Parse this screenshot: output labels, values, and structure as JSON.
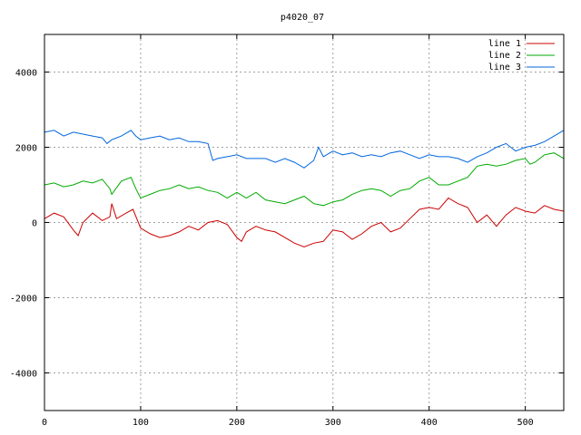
{
  "chart_data": {
    "type": "line",
    "title": "p4020_07",
    "xlabel": "",
    "ylabel": "",
    "xlim": [
      0,
      540
    ],
    "ylim": [
      -5000,
      5000
    ],
    "x_ticks": [
      0,
      100,
      200,
      300,
      400,
      500
    ],
    "y_ticks": [
      -4000,
      -2000,
      0,
      2000,
      4000
    ],
    "x_tick_labels": [
      "0",
      "100",
      "200",
      "300",
      "400",
      "500"
    ],
    "y_tick_labels": [
      "-4000",
      "-2000",
      "0",
      "2000",
      "4000"
    ],
    "grid": true,
    "legend_position": "top-right",
    "series": [
      {
        "name": "line 1",
        "color": "#cc0000",
        "x": [
          0,
          10,
          20,
          30,
          35,
          40,
          50,
          60,
          68,
          70,
          75,
          85,
          92,
          100,
          110,
          120,
          130,
          140,
          150,
          160,
          170,
          180,
          190,
          200,
          205,
          210,
          220,
          230,
          240,
          250,
          260,
          270,
          280,
          290,
          300,
          310,
          320,
          330,
          340,
          350,
          360,
          370,
          380,
          390,
          400,
          410,
          420,
          430,
          440,
          450,
          460,
          470,
          480,
          490,
          500,
          510,
          520,
          530,
          540
        ],
        "y": [
          100,
          250,
          150,
          -200,
          -350,
          0,
          250,
          50,
          150,
          500,
          100,
          250,
          350,
          -150,
          -300,
          -400,
          -350,
          -250,
          -100,
          -200,
          0,
          50,
          -50,
          -400,
          -500,
          -250,
          -100,
          -200,
          -250,
          -400,
          -550,
          -650,
          -550,
          -500,
          -200,
          -250,
          -450,
          -300,
          -100,
          0,
          -250,
          -150,
          100,
          350,
          400,
          350,
          650,
          500,
          400,
          0,
          200,
          -100,
          200,
          400,
          300,
          250,
          450,
          350,
          300
        ]
      },
      {
        "name": "line 2",
        "color": "#00aa00",
        "x": [
          0,
          10,
          20,
          30,
          40,
          50,
          60,
          68,
          70,
          80,
          90,
          95,
          100,
          110,
          120,
          130,
          140,
          150,
          160,
          170,
          180,
          190,
          200,
          210,
          220,
          230,
          240,
          250,
          260,
          270,
          280,
          290,
          300,
          310,
          320,
          330,
          340,
          350,
          360,
          370,
          380,
          390,
          400,
          410,
          420,
          430,
          440,
          450,
          460,
          470,
          480,
          490,
          500,
          505,
          510,
          520,
          530,
          540
        ],
        "y": [
          1000,
          1050,
          950,
          1000,
          1100,
          1050,
          1150,
          900,
          750,
          1100,
          1200,
          900,
          650,
          750,
          850,
          900,
          1000,
          900,
          950,
          850,
          800,
          650,
          800,
          650,
          800,
          600,
          550,
          500,
          600,
          700,
          500,
          450,
          550,
          600,
          750,
          850,
          900,
          850,
          700,
          850,
          900,
          1100,
          1200,
          1000,
          1000,
          1100,
          1200,
          1500,
          1550,
          1500,
          1550,
          1650,
          1700,
          1550,
          1600,
          1800,
          1850,
          1700
        ]
      },
      {
        "name": "line 3",
        "color": "#0066dd",
        "x": [
          0,
          10,
          20,
          30,
          40,
          50,
          60,
          65,
          70,
          80,
          90,
          95,
          100,
          110,
          120,
          130,
          140,
          150,
          160,
          170,
          175,
          180,
          190,
          200,
          210,
          220,
          230,
          240,
          250,
          260,
          270,
          280,
          285,
          290,
          300,
          310,
          320,
          330,
          340,
          350,
          360,
          370,
          380,
          390,
          400,
          410,
          420,
          430,
          440,
          450,
          460,
          470,
          480,
          490,
          500,
          510,
          520,
          530,
          540
        ],
        "y": [
          2400,
          2450,
          2300,
          2400,
          2350,
          2300,
          2250,
          2100,
          2200,
          2300,
          2450,
          2300,
          2200,
          2250,
          2300,
          2200,
          2250,
          2150,
          2150,
          2100,
          1650,
          1700,
          1750,
          1800,
          1700,
          1700,
          1700,
          1600,
          1700,
          1600,
          1450,
          1650,
          2000,
          1750,
          1900,
          1800,
          1850,
          1750,
          1800,
          1750,
          1850,
          1900,
          1800,
          1700,
          1800,
          1750,
          1750,
          1700,
          1600,
          1750,
          1850,
          2000,
          2100,
          1900,
          2000,
          2050,
          2150,
          2300,
          2450
        ]
      }
    ]
  }
}
